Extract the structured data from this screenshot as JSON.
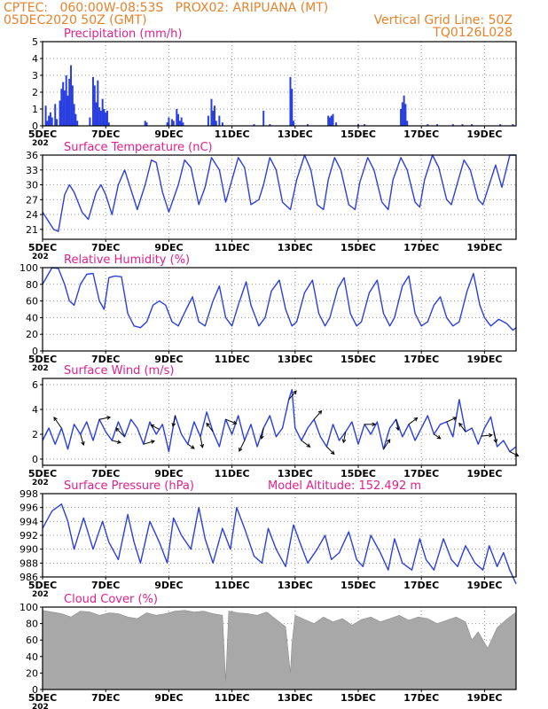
{
  "header": {
    "left_line1": "CPTEC:   060:00W-08:53S   PROX02: ARIPUANA (MT)",
    "left_line2": "05DEC2020 50Z (GMT)",
    "right_line1": "Vertical Grid Line: 50Z",
    "right_line2": "TQ0126L028"
  },
  "colors": {
    "accent": "#e8822a",
    "title": "#e0208c",
    "series": "#2a3fe0",
    "cloud": "#a8a8a8",
    "grid": "#9a9a9a"
  },
  "x_axis": {
    "ticks": [
      {
        "day": 5,
        "label": "5DEC"
      },
      {
        "day": 7,
        "label": "7DEC"
      },
      {
        "day": 9,
        "label": "9DEC"
      },
      {
        "day": 11,
        "label": "11DEC"
      },
      {
        "day": 13,
        "label": "13DEC"
      },
      {
        "day": 15,
        "label": "15DEC"
      },
      {
        "day": 17,
        "label": "17DEC"
      },
      {
        "day": 19,
        "label": "19DEC"
      }
    ],
    "range": [
      5,
      20
    ],
    "year_fragment": "202"
  },
  "chart_data": [
    {
      "type": "bar",
      "title": "Precipitation (mm/h)",
      "ylim": [
        0,
        5
      ],
      "yticks": [
        0,
        1,
        2,
        3,
        4,
        5
      ],
      "grid": true,
      "x": [
        5.1,
        5.15,
        5.2,
        5.25,
        5.3,
        5.4,
        5.45,
        5.55,
        5.6,
        5.65,
        5.7,
        5.75,
        5.8,
        5.85,
        5.9,
        5.95,
        6.0,
        6.05,
        6.1,
        6.5,
        6.6,
        6.65,
        6.7,
        6.75,
        6.8,
        6.85,
        6.9,
        6.95,
        7.0,
        7.05,
        7.1,
        8.25,
        8.3,
        8.95,
        9.0,
        9.1,
        9.15,
        9.25,
        9.3,
        9.35,
        9.4,
        9.45,
        10.25,
        10.35,
        10.4,
        10.45,
        10.5,
        10.6,
        10.7,
        11.7,
        12.0,
        12.2,
        12.85,
        12.9,
        12.95,
        13.4,
        14.05,
        14.1,
        14.15,
        14.2,
        14.3,
        15.0,
        15.2,
        16.35,
        16.4,
        16.45,
        16.5,
        16.55,
        17.2,
        17.5,
        18.0,
        18.3,
        18.6,
        19.5,
        19.9
      ],
      "values": [
        1.2,
        0.3,
        0.6,
        0.8,
        0.5,
        1.3,
        0.4,
        1.5,
        2.2,
        2.6,
        2.1,
        3.0,
        1.8,
        2.8,
        3.6,
        2.4,
        1.3,
        0.7,
        0.3,
        0.5,
        2.9,
        2.4,
        1.4,
        2.7,
        1.1,
        0.9,
        1.6,
        1.0,
        0.8,
        0.9,
        0.2,
        0.3,
        0.2,
        0.2,
        0.5,
        0.4,
        0.3,
        1.0,
        0.7,
        0.3,
        0.5,
        0.2,
        0.6,
        1.6,
        0.9,
        1.2,
        0.3,
        0.6,
        0.2,
        0.1,
        0.9,
        0.1,
        2.9,
        2.2,
        0.3,
        0.1,
        0.6,
        0.5,
        0.6,
        0.7,
        0.2,
        0.1,
        0.1,
        1.0,
        1.4,
        1.8,
        1.3,
        0.3,
        0.1,
        0.1,
        0.1,
        0.1,
        0.1,
        0.1,
        0.1
      ]
    },
    {
      "type": "line",
      "title": "Surface Temperature (nC)",
      "ylim": [
        19,
        36
      ],
      "yticks": [
        21,
        24,
        27,
        30,
        33,
        36
      ],
      "grid": true,
      "x": [
        5.0,
        5.2,
        5.35,
        5.5,
        5.7,
        5.85,
        6.0,
        6.25,
        6.45,
        6.7,
        6.85,
        7.0,
        7.2,
        7.4,
        7.6,
        7.8,
        8.0,
        8.25,
        8.45,
        8.6,
        8.8,
        9.0,
        9.3,
        9.5,
        9.7,
        9.95,
        10.15,
        10.35,
        10.6,
        10.8,
        11.0,
        11.2,
        11.4,
        11.6,
        11.85,
        12.0,
        12.2,
        12.4,
        12.6,
        12.85,
        13.05,
        13.3,
        13.5,
        13.7,
        13.9,
        14.05,
        14.25,
        14.45,
        14.7,
        14.9,
        15.05,
        15.3,
        15.5,
        15.75,
        15.95,
        16.1,
        16.35,
        16.55,
        16.8,
        16.95,
        17.1,
        17.35,
        17.55,
        17.8,
        17.95,
        18.15,
        18.35,
        18.55,
        18.8,
        18.95,
        19.15,
        19.35,
        19.55,
        19.8,
        20.0
      ],
      "values": [
        24.5,
        22.5,
        21.0,
        20.6,
        28.0,
        30.0,
        28.5,
        24.5,
        23.0,
        28.5,
        30.0,
        28.0,
        24.0,
        30.0,
        33.0,
        29.0,
        25.0,
        30.0,
        35.0,
        34.5,
        28.5,
        24.5,
        30.0,
        35.0,
        33.5,
        26.0,
        29.5,
        35.5,
        33.0,
        26.5,
        31.0,
        35.5,
        33.5,
        26.0,
        27.0,
        30.0,
        35.5,
        33.0,
        26.5,
        25.0,
        31.0,
        36.0,
        33.0,
        26.0,
        25.0,
        31.0,
        35.5,
        33.0,
        26.0,
        25.0,
        30.5,
        35.5,
        33.0,
        26.5,
        25.0,
        31.0,
        35.5,
        33.0,
        26.5,
        25.5,
        31.0,
        36.0,
        33.5,
        27.0,
        26.0,
        30.5,
        35.0,
        33.0,
        27.0,
        26.0,
        30.0,
        34.0,
        29.5,
        36.0,
        36.0
      ]
    },
    {
      "type": "line",
      "title": "Relative Humidity (%)",
      "ylim": [
        0,
        100
      ],
      "yticks": [
        0,
        20,
        40,
        60,
        80,
        100
      ],
      "grid": true,
      "x": [
        5.0,
        5.15,
        5.3,
        5.5,
        5.7,
        5.85,
        6.0,
        6.2,
        6.4,
        6.6,
        6.8,
        6.95,
        7.1,
        7.3,
        7.5,
        7.7,
        7.9,
        8.1,
        8.3,
        8.5,
        8.7,
        8.9,
        9.1,
        9.3,
        9.55,
        9.75,
        9.95,
        10.15,
        10.4,
        10.6,
        10.8,
        11.0,
        11.2,
        11.45,
        11.6,
        11.85,
        12.05,
        12.25,
        12.5,
        12.7,
        12.9,
        13.05,
        13.3,
        13.55,
        13.75,
        13.95,
        14.1,
        14.35,
        14.55,
        14.75,
        14.95,
        15.1,
        15.35,
        15.6,
        15.8,
        16.0,
        16.15,
        16.4,
        16.6,
        16.8,
        17.0,
        17.2,
        17.4,
        17.6,
        17.8,
        18.0,
        18.2,
        18.45,
        18.65,
        18.85,
        19.0,
        19.2,
        19.45,
        19.7,
        19.9,
        20.0
      ],
      "values": [
        80,
        90,
        100,
        99,
        80,
        60,
        55,
        80,
        92,
        93,
        60,
        50,
        88,
        90,
        89,
        45,
        30,
        28,
        35,
        55,
        60,
        55,
        35,
        30,
        50,
        65,
        35,
        30,
        60,
        78,
        40,
        30,
        55,
        83,
        55,
        30,
        40,
        72,
        85,
        50,
        30,
        35,
        70,
        85,
        45,
        30,
        40,
        75,
        88,
        45,
        30,
        35,
        70,
        85,
        45,
        30,
        40,
        78,
        90,
        45,
        30,
        35,
        55,
        65,
        40,
        30,
        35,
        72,
        93,
        55,
        40,
        30,
        38,
        33,
        25,
        28
      ]
    },
    {
      "type": "line",
      "title": "Surface Wind (m/s)",
      "ylim": [
        -0.5,
        6.5
      ],
      "yticks": [
        0,
        2,
        4,
        6
      ],
      "grid": true,
      "x": [
        5.0,
        5.2,
        5.4,
        5.6,
        5.8,
        6.0,
        6.2,
        6.4,
        6.6,
        6.8,
        7.0,
        7.2,
        7.4,
        7.6,
        7.8,
        8.0,
        8.2,
        8.4,
        8.6,
        8.8,
        9.0,
        9.2,
        9.4,
        9.6,
        9.8,
        10.0,
        10.2,
        10.4,
        10.6,
        10.8,
        11.0,
        11.2,
        11.4,
        11.6,
        11.8,
        12.0,
        12.2,
        12.4,
        12.6,
        12.8,
        12.9,
        13.0,
        13.2,
        13.4,
        13.6,
        13.8,
        14.0,
        14.2,
        14.4,
        14.6,
        14.8,
        15.0,
        15.2,
        15.4,
        15.6,
        15.8,
        16.0,
        16.2,
        16.4,
        16.6,
        16.8,
        17.0,
        17.2,
        17.4,
        17.6,
        17.8,
        18.0,
        18.2,
        18.4,
        18.6,
        18.8,
        19.0,
        19.2,
        19.4,
        19.6,
        19.8,
        20.0
      ],
      "values": [
        1.5,
        2.5,
        1.2,
        2.5,
        0.8,
        2.8,
        2.0,
        3.0,
        1.5,
        3.2,
        2.2,
        1.5,
        3.0,
        1.8,
        3.2,
        2.5,
        1.2,
        3.0,
        2.0,
        2.8,
        0.6,
        3.5,
        2.0,
        1.2,
        3.0,
        1.8,
        3.8,
        2.2,
        1.0,
        3.2,
        2.0,
        3.5,
        1.5,
        2.8,
        1.0,
        2.5,
        3.5,
        1.8,
        2.5,
        4.8,
        5.6,
        2.5,
        1.5,
        2.5,
        3.2,
        1.8,
        1.0,
        2.8,
        1.5,
        2.2,
        3.0,
        1.2,
        2.8,
        2.0,
        3.0,
        0.8,
        2.5,
        3.2,
        1.8,
        2.8,
        1.5,
        2.5,
        3.5,
        2.0,
        2.8,
        3.0,
        1.8,
        4.8,
        2.2,
        2.5,
        1.2,
        2.5,
        3.4,
        1.0,
        1.5,
        0.6,
        1.0
      ],
      "vectors": [
        {
          "x": 5.6,
          "u": -0.7,
          "v": 1.0
        },
        {
          "x": 6.2,
          "u": 0.3,
          "v": -1.0
        },
        {
          "x": 6.8,
          "u": 1.0,
          "v": 0.2
        },
        {
          "x": 7.2,
          "u": 0.8,
          "v": -0.2
        },
        {
          "x": 7.6,
          "u": -0.8,
          "v": 0.8
        },
        {
          "x": 8.2,
          "u": 1.0,
          "v": 0.3
        },
        {
          "x": 8.7,
          "u": -0.8,
          "v": 0.4
        },
        {
          "x": 9.2,
          "u": -0.2,
          "v": -1.0
        },
        {
          "x": 9.6,
          "u": 0.6,
          "v": -0.4
        },
        {
          "x": 10.0,
          "u": 0.2,
          "v": -1.0
        },
        {
          "x": 10.4,
          "u": -0.6,
          "v": 0.8
        },
        {
          "x": 10.8,
          "u": 1.0,
          "v": -0.4
        },
        {
          "x": 11.4,
          "u": -0.5,
          "v": -1.0
        },
        {
          "x": 12.0,
          "u": -0.2,
          "v": -1.0
        },
        {
          "x": 12.8,
          "u": 0.7,
          "v": 0.8
        },
        {
          "x": 13.2,
          "u": 0.8,
          "v": -0.6
        },
        {
          "x": 13.6,
          "u": 0.7,
          "v": 0.8
        },
        {
          "x": 14.0,
          "u": 0.7,
          "v": -0.7
        },
        {
          "x": 14.6,
          "u": -0.2,
          "v": -1.0
        },
        {
          "x": 15.2,
          "u": 1.0,
          "v": 0.0
        },
        {
          "x": 15.8,
          "u": 0.6,
          "v": 0.9
        },
        {
          "x": 16.2,
          "u": 0.2,
          "v": -1.0
        },
        {
          "x": 16.6,
          "u": 0.8,
          "v": 0.6
        },
        {
          "x": 17.4,
          "u": 0.6,
          "v": -0.4
        },
        {
          "x": 17.8,
          "u": 0.9,
          "v": 0.4
        },
        {
          "x": 18.4,
          "u": -0.6,
          "v": 0.8
        },
        {
          "x": 18.9,
          "u": 1.0,
          "v": 0.1
        },
        {
          "x": 19.3,
          "u": 0.2,
          "v": -1.0
        },
        {
          "x": 19.8,
          "u": 0.8,
          "v": -0.4
        }
      ]
    },
    {
      "type": "line",
      "title": "Surface Pressure (hPa)",
      "annotation": "Model Altitude: 152.492 m",
      "ylim": [
        986,
        998
      ],
      "yticks": [
        986,
        988,
        990,
        992,
        994,
        996,
        998
      ],
      "grid": true,
      "x": [
        5.0,
        5.3,
        5.6,
        5.8,
        6.0,
        6.3,
        6.6,
        6.9,
        7.1,
        7.4,
        7.7,
        7.9,
        8.1,
        8.4,
        8.7,
        8.95,
        9.15,
        9.4,
        9.7,
        9.95,
        10.15,
        10.4,
        10.7,
        10.95,
        11.15,
        11.4,
        11.7,
        11.95,
        12.15,
        12.4,
        12.7,
        12.95,
        13.15,
        13.4,
        13.7,
        13.95,
        14.15,
        14.4,
        14.7,
        14.95,
        15.15,
        15.4,
        15.7,
        15.95,
        16.15,
        16.4,
        16.7,
        16.95,
        17.15,
        17.4,
        17.7,
        17.95,
        18.15,
        18.4,
        18.7,
        18.95,
        19.15,
        19.4,
        19.6,
        19.8,
        20.0
      ],
      "values": [
        993.0,
        995.5,
        996.5,
        994.0,
        990.0,
        994.5,
        990.0,
        994.0,
        991.0,
        988.5,
        995.0,
        991.0,
        988.0,
        994.0,
        991.0,
        988.0,
        994.5,
        992.0,
        990.0,
        996.0,
        991.5,
        988.0,
        993.0,
        990.0,
        996.0,
        993.0,
        989.0,
        988.0,
        993.0,
        990.0,
        987.5,
        993.5,
        991.0,
        988.0,
        990.0,
        992.0,
        988.5,
        989.5,
        992.5,
        988.5,
        987.5,
        992.0,
        989.5,
        987.0,
        991.5,
        988.0,
        987.0,
        991.5,
        988.5,
        987.0,
        991.5,
        988.5,
        987.5,
        990.5,
        988.0,
        987.0,
        990.5,
        987.5,
        989.5,
        987.0,
        985.0
      ]
    },
    {
      "type": "area",
      "title": "Cloud Cover (%)",
      "ylim": [
        0,
        100
      ],
      "yticks": [
        0,
        20,
        40,
        60,
        80,
        100
      ],
      "grid": true,
      "x": [
        5.0,
        5.3,
        5.6,
        5.9,
        6.2,
        6.5,
        6.8,
        7.1,
        7.4,
        7.7,
        8.0,
        8.3,
        8.6,
        8.9,
        9.2,
        9.5,
        9.8,
        10.1,
        10.4,
        10.7,
        10.8,
        10.9,
        11.2,
        11.5,
        11.8,
        12.1,
        12.4,
        12.7,
        12.85,
        12.9,
        13.0,
        13.3,
        13.6,
        13.9,
        14.2,
        14.5,
        14.8,
        15.1,
        15.4,
        15.7,
        16.0,
        16.3,
        16.6,
        16.9,
        17.2,
        17.5,
        17.8,
        18.1,
        18.4,
        18.6,
        18.8,
        19.1,
        19.4,
        19.7,
        20.0
      ],
      "values": [
        96,
        94,
        92,
        88,
        95,
        94,
        90,
        93,
        92,
        88,
        86,
        93,
        90,
        92,
        95,
        96,
        94,
        95,
        92,
        90,
        10,
        95,
        93,
        92,
        90,
        94,
        85,
        76,
        20,
        55,
        90,
        85,
        80,
        88,
        82,
        86,
        78,
        85,
        88,
        82,
        86,
        90,
        84,
        88,
        86,
        80,
        84,
        88,
        82,
        60,
        70,
        50,
        75,
        85,
        94
      ]
    }
  ]
}
